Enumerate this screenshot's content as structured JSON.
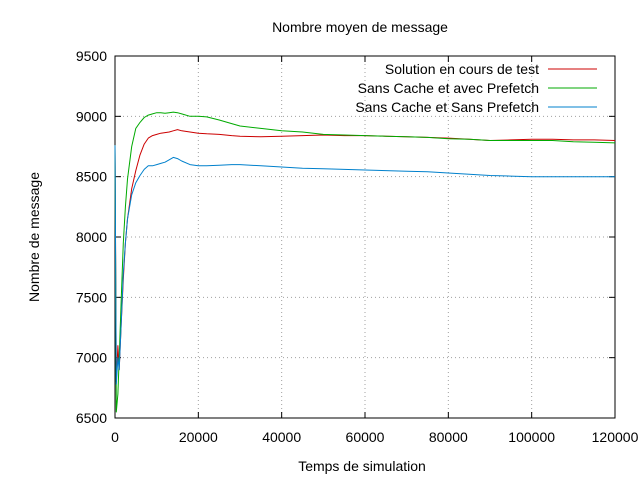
{
  "chart_data": {
    "type": "line",
    "title": "Nombre moyen de message",
    "xlabel": "Temps de simulation",
    "ylabel": "Nombre de message",
    "xlim": [
      0,
      120000
    ],
    "ylim": [
      6500,
      9500
    ],
    "xticks": [
      0,
      20000,
      40000,
      60000,
      80000,
      100000,
      120000
    ],
    "yticks": [
      6500,
      7000,
      7500,
      8000,
      8500,
      9000,
      9500
    ],
    "grid": true,
    "legend_position": "top-right",
    "series": [
      {
        "name": "Solution en cours de test",
        "color": "#cc0000",
        "x": [
          0,
          300,
          700,
          1000,
          1500,
          2000,
          2500,
          3000,
          4000,
          5000,
          6000,
          7000,
          8000,
          9000,
          10000,
          11000,
          12000,
          13000,
          14000,
          15000,
          16000,
          18000,
          20000,
          22000,
          25000,
          28000,
          30000,
          35000,
          40000,
          45000,
          50000,
          55000,
          60000,
          65000,
          70000,
          75000,
          80000,
          85000,
          90000,
          95000,
          100000,
          105000,
          110000,
          115000,
          120000
        ],
        "y": [
          8760,
          6800,
          7100,
          6900,
          7300,
          7650,
          7950,
          8150,
          8400,
          8550,
          8680,
          8770,
          8820,
          8840,
          8850,
          8860,
          8865,
          8870,
          8880,
          8890,
          8880,
          8870,
          8860,
          8855,
          8850,
          8840,
          8835,
          8830,
          8835,
          8840,
          8845,
          8840,
          8840,
          8835,
          8830,
          8825,
          8820,
          8810,
          8800,
          8805,
          8810,
          8810,
          8805,
          8805,
          8800
        ]
      },
      {
        "name": "Sans Cache et avec Prefetch",
        "color": "#00aa00",
        "x": [
          0,
          300,
          700,
          1000,
          1500,
          2000,
          2500,
          3000,
          4000,
          5000,
          6000,
          7000,
          8000,
          9000,
          10000,
          11000,
          12000,
          13000,
          14000,
          15000,
          16000,
          18000,
          20000,
          22000,
          25000,
          28000,
          30000,
          35000,
          40000,
          45000,
          50000,
          55000,
          60000,
          65000,
          70000,
          75000,
          80000,
          85000,
          90000,
          95000,
          100000,
          105000,
          110000,
          115000,
          120000
        ],
        "y": [
          8760,
          6550,
          6700,
          7000,
          7500,
          7950,
          8250,
          8480,
          8750,
          8900,
          8950,
          8990,
          9010,
          9020,
          9030,
          9030,
          9025,
          9030,
          9035,
          9030,
          9020,
          9000,
          9000,
          8995,
          8970,
          8940,
          8920,
          8900,
          8880,
          8870,
          8850,
          8845,
          8840,
          8835,
          8830,
          8825,
          8815,
          8810,
          8800,
          8800,
          8800,
          8800,
          8790,
          8785,
          8780
        ]
      },
      {
        "name": "Sans Cache et Sans Prefetch",
        "color": "#0080cc",
        "x": [
          0,
          300,
          700,
          1000,
          1500,
          2000,
          2500,
          3000,
          4000,
          5000,
          6000,
          7000,
          8000,
          9000,
          10000,
          11000,
          12000,
          13000,
          14000,
          15000,
          16000,
          18000,
          20000,
          22000,
          25000,
          28000,
          30000,
          35000,
          40000,
          45000,
          50000,
          55000,
          60000,
          65000,
          70000,
          75000,
          80000,
          85000,
          90000,
          95000,
          100000,
          105000,
          110000,
          115000,
          120000
        ],
        "y": [
          8760,
          6780,
          7000,
          6900,
          7300,
          7700,
          7950,
          8150,
          8350,
          8450,
          8510,
          8560,
          8590,
          8590,
          8600,
          8610,
          8620,
          8640,
          8660,
          8650,
          8630,
          8600,
          8590,
          8590,
          8595,
          8600,
          8600,
          8590,
          8580,
          8570,
          8565,
          8560,
          8555,
          8550,
          8545,
          8540,
          8530,
          8520,
          8510,
          8505,
          8500,
          8500,
          8500,
          8500,
          8500
        ]
      }
    ]
  }
}
